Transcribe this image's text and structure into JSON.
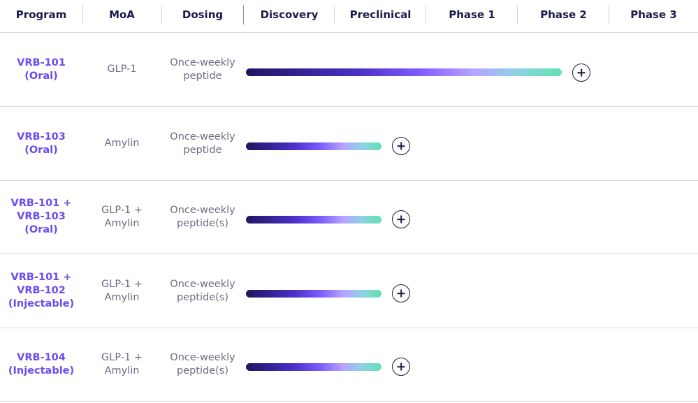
{
  "header": {
    "columns": [
      "Program",
      "MoA",
      "Dosing",
      "Discovery",
      "Preclinical",
      "Phase 1",
      "Phase 2",
      "Phase 3"
    ]
  },
  "colors": {
    "header_text": "#1c1a4b",
    "program_text": "#6c4cf0",
    "body_text": "#6e6b80",
    "bar_gradient": [
      "#1e1660",
      "#4a2fc6",
      "#7c5cff",
      "#b6a4ff",
      "#8fd0e6",
      "#5fe3b0"
    ]
  },
  "rows": [
    {
      "program": [
        "VRB-101",
        "(Oral)"
      ],
      "moa": [
        "GLP-1"
      ],
      "dosing": [
        "Once-weekly",
        "peptide"
      ],
      "reached_stage": "Phase 2",
      "expand_icon": "plus-circle-icon"
    },
    {
      "program": [
        "VRB-103",
        "(Oral)"
      ],
      "moa": [
        "Amylin"
      ],
      "dosing": [
        "Once-weekly",
        "peptide"
      ],
      "reached_stage": "Preclinical",
      "expand_icon": "plus-circle-icon"
    },
    {
      "program": [
        "VRB-101 +",
        "VRB-103",
        "(Oral)"
      ],
      "moa": [
        "GLP-1 +",
        "Amylin"
      ],
      "dosing": [
        "Once-weekly",
        "peptide(s)"
      ],
      "reached_stage": "Preclinical",
      "expand_icon": "plus-circle-icon"
    },
    {
      "program": [
        "VRB-101 +",
        "VRB-102",
        "(Injectable)"
      ],
      "moa": [
        "GLP-1 +",
        "Amylin"
      ],
      "dosing": [
        "Once-weekly",
        "peptide(s)"
      ],
      "reached_stage": "Preclinical",
      "expand_icon": "plus-circle-icon"
    },
    {
      "program": [
        "VRB-104",
        "(Injectable)"
      ],
      "moa": [
        "GLP-1 +",
        "Amylin"
      ],
      "dosing": [
        "Once-weekly",
        "peptide(s)"
      ],
      "reached_stage": "Preclinical",
      "expand_icon": "plus-circle-icon"
    }
  ]
}
